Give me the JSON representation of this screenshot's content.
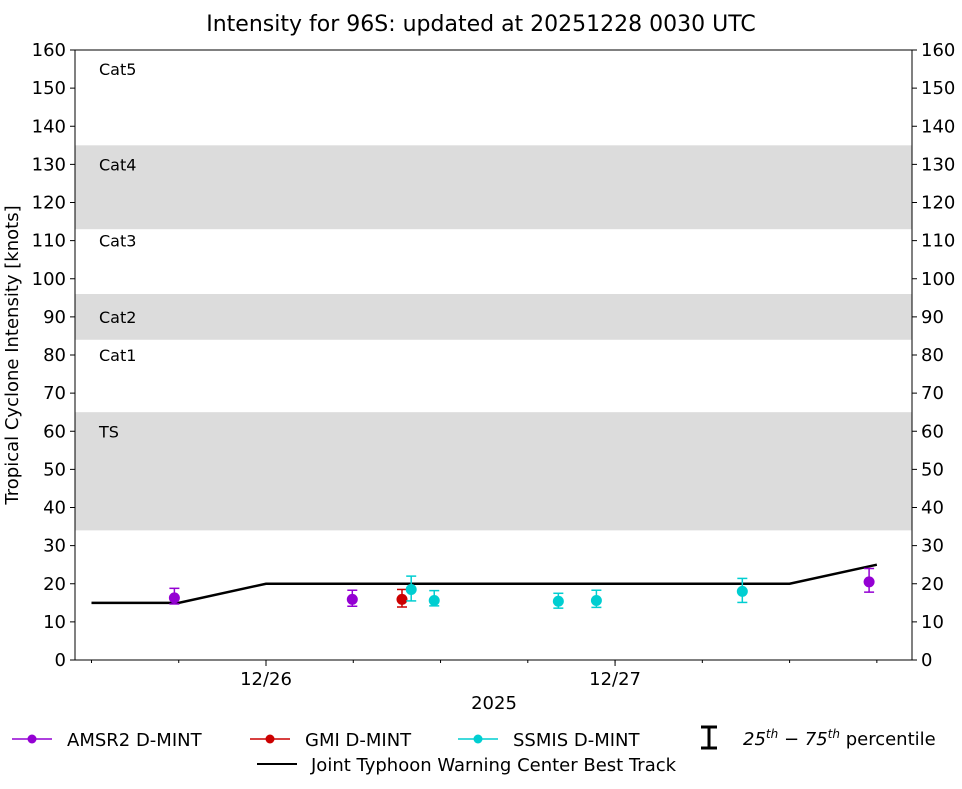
{
  "chart_data": {
    "type": "scatter",
    "title": "Intensity for 96S: updated at 20251228 0030 UTC",
    "xlabel": "2025",
    "ylabel": "Tropical Cyclone Intensity [knots]",
    "ylim": [
      0,
      160
    ],
    "xlim": [
      "2025-12-25 10:52",
      "2025-12-27 20:25"
    ],
    "yticks": [
      0,
      10,
      20,
      30,
      40,
      50,
      60,
      70,
      80,
      90,
      100,
      110,
      120,
      130,
      140,
      150,
      160
    ],
    "xticks": [
      {
        "label": "12/26",
        "t": "2025-12-26 00:00"
      },
      {
        "label": "12/27",
        "t": "2025-12-27 00:00"
      }
    ],
    "x_minor_tick_hours": 6,
    "grid": false,
    "category_bands": [
      {
        "label": "TS",
        "range": [
          34,
          65
        ],
        "shaded": true,
        "color": "#dcdcdc"
      },
      {
        "label": "Cat1",
        "range": [
          65,
          84
        ],
        "shaded": false
      },
      {
        "label": "Cat2",
        "range": [
          84,
          96
        ],
        "shaded": true,
        "color": "#dcdcdc"
      },
      {
        "label": "Cat3",
        "range": [
          96,
          113
        ],
        "shaded": false
      },
      {
        "label": "Cat4",
        "range": [
          113,
          135
        ],
        "shaded": true,
        "color": "#dcdcdc"
      },
      {
        "label": "Cat5",
        "range": [
          135,
          160
        ],
        "shaded": false
      }
    ],
    "category_label_values": [
      60,
      80,
      90,
      110,
      130,
      155
    ],
    "series": [
      {
        "name": "AMSR2 D-MINT",
        "color": "#9400d3",
        "points": [
          {
            "t": "2025-12-25 17:42",
            "y": 16.3,
            "p25": 14.7,
            "p75": 18.8
          },
          {
            "t": "2025-12-26 05:56",
            "y": 15.9,
            "p25": 14.1,
            "p75": 18.3
          },
          {
            "t": "2025-12-27 17:28",
            "y": 20.5,
            "p25": 17.8,
            "p75": 24.0
          }
        ]
      },
      {
        "name": "GMI D-MINT",
        "color": "#cc0000",
        "points": [
          {
            "t": "2025-12-26 09:21",
            "y": 15.9,
            "p25": 13.9,
            "p75": 18.5
          }
        ]
      },
      {
        "name": "SSMIS D-MINT",
        "color": "#00ced1",
        "points": [
          {
            "t": "2025-12-26 09:59",
            "y": 18.5,
            "p25": 15.5,
            "p75": 22.0
          },
          {
            "t": "2025-12-26 11:34",
            "y": 15.6,
            "p25": 14.2,
            "p75": 18.2
          },
          {
            "t": "2025-12-26 20:06",
            "y": 15.4,
            "p25": 13.6,
            "p75": 17.5
          },
          {
            "t": "2025-12-26 22:43",
            "y": 15.6,
            "p25": 13.8,
            "p75": 18.3
          },
          {
            "t": "2025-12-27 08:45",
            "y": 18.0,
            "p25": 15.1,
            "p75": 21.4
          }
        ]
      },
      {
        "name": "Joint Typhoon Warning Center Best Track",
        "color": "#000000",
        "line": true,
        "points": [
          {
            "t": "2025-12-25 12:00",
            "y": 15
          },
          {
            "t": "2025-12-25 18:00",
            "y": 15
          },
          {
            "t": "2025-12-26 00:00",
            "y": 20
          },
          {
            "t": "2025-12-26 06:00",
            "y": 20
          },
          {
            "t": "2025-12-26 12:00",
            "y": 20
          },
          {
            "t": "2025-12-26 18:00",
            "y": 20
          },
          {
            "t": "2025-12-27 00:00",
            "y": 20
          },
          {
            "t": "2025-12-27 06:00",
            "y": 20
          },
          {
            "t": "2025-12-27 12:00",
            "y": 20
          },
          {
            "t": "2025-12-27 18:00",
            "y": 25
          }
        ]
      }
    ],
    "legend": {
      "placement": "bottom",
      "percentile_label": "25th – 75th percentile",
      "percentile_base": "25",
      "percentile_sup1": "th",
      "percentile_mid": " − 75",
      "percentile_sup2": "th",
      "percentile_tail": " percentile"
    }
  }
}
